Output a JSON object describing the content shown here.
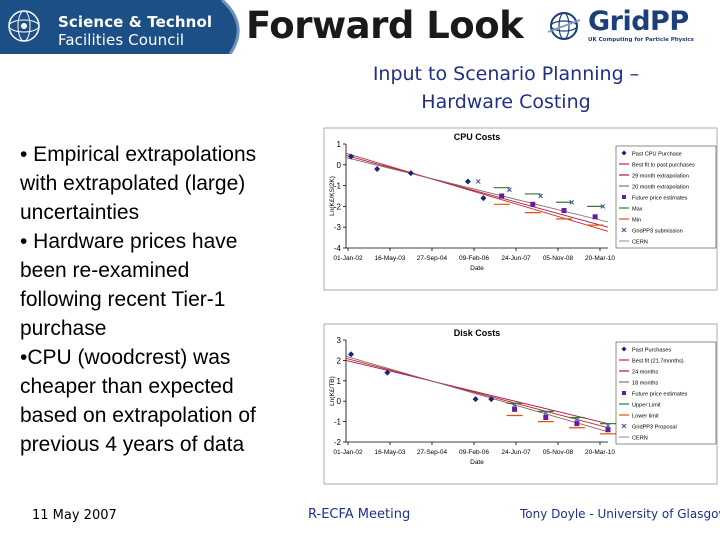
{
  "header": {
    "org_line1": "Science & Technology",
    "org_line2": "Facilities Council",
    "title": "Forward Look",
    "gridpp_name": "GridPP",
    "gridpp_tagline": "UK Computing for Particle Physics"
  },
  "subtitle": {
    "line1": "Input to Scenario Planning –",
    "line2": "Hardware Costing"
  },
  "bullets": [
    "• Empirical extrapolations",
    "with extrapolated (large)",
    "uncertainties",
    "• Hardware prices have",
    "been re-examined",
    "following recent Tier-1",
    "purchase",
    "•CPU (woodcrest) was",
    "cheaper than expected",
    "based on extrapolation of",
    "previous 4 years of data"
  ],
  "footer": {
    "date": "11 May 2007",
    "meeting": "R-ECFA Meeting",
    "author": "Tony Doyle - University of Glasgow"
  },
  "chart_data": [
    {
      "type": "scatter",
      "title": "CPU Costs",
      "xlabel": "Date",
      "ylabel": "Ln(K£/KSI2K)",
      "x_ticks": [
        "01-Jan-02",
        "16-May-03",
        "27-Sep-04",
        "09-Feb-06",
        "24-Jun-07",
        "05-Nov-08",
        "20-Mar-10"
      ],
      "y_ticks": [
        1,
        0,
        -1,
        -2,
        -3,
        -4
      ],
      "ylim": [
        -4,
        1
      ],
      "grid": false,
      "legend_position": "right",
      "legend": [
        "Past CPU Purchase",
        "Best fit to past purchases",
        "29 month extrapolation",
        "20 month extrapolation",
        "Future price estimates",
        "Max",
        "Min",
        "GridPP3 submission",
        "CERN"
      ],
      "series": [
        {
          "name": "Past CPU Purchase",
          "marker": "diamond",
          "color": "#1a237e",
          "x": [
            "2002-03-01",
            "2003-01-01",
            "2004-02-01",
            "2005-12-01",
            "2006-06-01"
          ],
          "y": [
            0.4,
            -0.2,
            -0.4,
            -0.8,
            -1.6
          ]
        },
        {
          "name": "Future price estimates",
          "marker": "square",
          "color": "#6a1b9a",
          "x": [
            "2007-01-01",
            "2008-01-01",
            "2009-01-01",
            "2010-01-01"
          ],
          "y": [
            -1.5,
            -1.9,
            -2.2,
            -2.5
          ]
        },
        {
          "name": "GridPP3 submission",
          "marker": "x",
          "color": "#3949ab",
          "x": [
            "2006-04-01",
            "2007-04-01",
            "2008-04-01",
            "2009-04-01",
            "2010-04-01"
          ],
          "y": [
            -0.8,
            -1.2,
            -1.5,
            -1.8,
            -2.0
          ]
        },
        {
          "name": "Max",
          "marker": "dash",
          "color": "#2e7d32",
          "x": [
            "2007-01-01",
            "2008-01-01",
            "2009-01-01",
            "2010-01-01"
          ],
          "y": [
            -1.1,
            -1.4,
            -1.8,
            -2.0
          ]
        },
        {
          "name": "Min",
          "marker": "dash",
          "color": "#e65100",
          "x": [
            "2007-01-01",
            "2008-01-01",
            "2009-01-01",
            "2010-01-01"
          ],
          "y": [
            -1.9,
            -2.3,
            -2.6,
            -2.9
          ]
        }
      ],
      "lines": [
        {
          "name": "Best fit to past purchases",
          "color": "#c62828",
          "x": [
            "2002-01-01",
            "2010-06-01"
          ],
          "y": [
            0.55,
            -3.2
          ]
        },
        {
          "name": "29 month extrapolation",
          "color": "#ad1457",
          "x": [
            "2002-01-01",
            "2010-06-01"
          ],
          "y": [
            0.45,
            -3.0
          ]
        },
        {
          "name": "20 month extrapolation",
          "color": "#8d6e63",
          "x": [
            "2002-01-01",
            "2010-06-01"
          ],
          "y": [
            0.35,
            -2.75
          ]
        }
      ]
    },
    {
      "type": "scatter",
      "title": "Disk Costs",
      "xlabel": "Date",
      "ylabel": "Ln(K£/TB)",
      "x_ticks": [
        "01-Jan-02",
        "16-May-03",
        "27-Sep-04",
        "09-Feb-06",
        "24-Jun-07",
        "05-Nov-08",
        "20-Mar-10"
      ],
      "y_ticks": [
        3,
        2,
        1,
        0,
        -1,
        -2
      ],
      "ylim": [
        -2,
        3
      ],
      "grid": false,
      "legend_position": "right",
      "legend": [
        "Past Purchases",
        "Best fit (21.7months)",
        "24 months",
        "18 months",
        "Future price estimates",
        "Upper Limit",
        "Lower limit",
        "GridPP3 Proposal",
        "CERN"
      ],
      "series": [
        {
          "name": "Past Purchases",
          "marker": "diamond",
          "color": "#1a237e",
          "x": [
            "2002-03-01",
            "2003-05-01",
            "2006-03-01",
            "2006-09-01"
          ],
          "y": [
            2.3,
            1.4,
            0.1,
            0.1
          ]
        },
        {
          "name": "Future price estimates",
          "marker": "square",
          "color": "#6a1b9a",
          "x": [
            "2007-06-01",
            "2008-06-01",
            "2009-06-01",
            "2010-06-01"
          ],
          "y": [
            -0.4,
            -0.8,
            -1.1,
            -1.4
          ]
        },
        {
          "name": "GridPP3 Proposal",
          "marker": "x",
          "color": "#3949ab",
          "x": [
            "2007-06-01",
            "2008-06-01",
            "2009-06-01",
            "2010-06-01"
          ],
          "y": [
            -0.2,
            -0.6,
            -0.9,
            -1.2
          ]
        },
        {
          "name": "Upper Limit",
          "marker": "dash",
          "color": "#2e7d32",
          "x": [
            "2007-06-01",
            "2008-06-01",
            "2009-06-01",
            "2010-06-01"
          ],
          "y": [
            -0.1,
            -0.5,
            -0.8,
            -1.1
          ]
        },
        {
          "name": "Lower limit",
          "marker": "dash",
          "color": "#e65100",
          "x": [
            "2007-06-01",
            "2008-06-01",
            "2009-06-01",
            "2010-06-01"
          ],
          "y": [
            -0.7,
            -1.0,
            -1.3,
            -1.6
          ]
        }
      ],
      "lines": [
        {
          "name": "Best fit (21.7months)",
          "color": "#c62828",
          "x": [
            "2002-01-01",
            "2010-06-01"
          ],
          "y": [
            2.1,
            -1.3
          ]
        },
        {
          "name": "24 months",
          "color": "#ad1457",
          "x": [
            "2002-01-01",
            "2010-06-01"
          ],
          "y": [
            2.0,
            -1.1
          ]
        },
        {
          "name": "18 months",
          "color": "#8d6e63",
          "x": [
            "2002-01-01",
            "2010-06-01"
          ],
          "y": [
            2.2,
            -1.5
          ]
        }
      ]
    }
  ]
}
